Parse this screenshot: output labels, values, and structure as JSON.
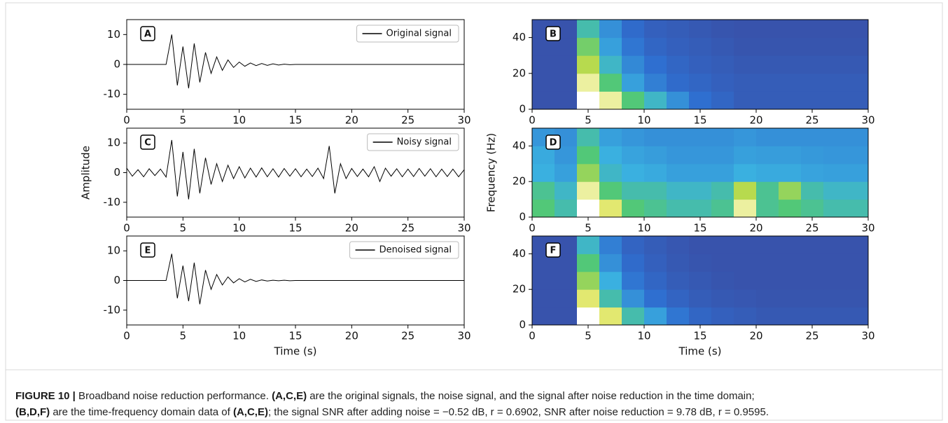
{
  "chart_data": [
    {
      "type": "line",
      "panel": "A",
      "legend": "Original signal",
      "color": "#000000",
      "xlim": [
        0,
        30
      ],
      "xticks": [
        0,
        5,
        10,
        15,
        20,
        25,
        30
      ],
      "ylim": [
        -15,
        15
      ],
      "yticks": [
        -10,
        0,
        10
      ],
      "x": [
        0,
        0.5,
        1,
        1.5,
        2,
        2.5,
        3,
        3.5,
        4,
        4.5,
        5,
        5.5,
        6,
        6.5,
        7,
        7.5,
        8,
        8.5,
        9,
        9.5,
        10,
        10.5,
        11,
        11.5,
        12,
        12.5,
        13,
        13.5,
        14,
        14.5,
        15,
        15.5,
        16,
        16.5,
        17,
        17.5,
        18,
        18.5,
        19,
        19.5,
        20,
        20.5,
        21,
        21.5,
        22,
        22.5,
        23,
        23.5,
        24,
        24.5,
        25,
        25.5,
        26,
        26.5,
        27,
        27.5,
        28,
        28.5,
        29,
        29.5,
        30
      ],
      "values": [
        0,
        0,
        0,
        0,
        0,
        0,
        0,
        0,
        10,
        -7,
        6,
        -8,
        7,
        -6,
        4,
        -3,
        2.5,
        -2,
        1.5,
        -1,
        0.8,
        -0.6,
        0.5,
        -0.4,
        0.3,
        -0.3,
        0.2,
        -0.2,
        0.1,
        -0.1,
        0,
        0,
        0,
        0,
        0,
        0,
        0,
        0,
        0,
        0,
        0,
        0,
        0,
        0,
        0,
        0,
        0,
        0,
        0,
        0,
        0,
        0,
        0,
        0,
        0,
        0,
        0,
        0,
        0,
        0,
        0
      ]
    },
    {
      "type": "heatmap",
      "panel": "B",
      "xlim": [
        0,
        30
      ],
      "xticks": [
        0,
        5,
        10,
        15,
        20,
        25,
        30
      ],
      "ylim": [
        0,
        50
      ],
      "yticks": [
        0,
        20,
        40
      ],
      "colorscale": [
        "#3b4aa0",
        "#2f6fd0",
        "#3ab0e0",
        "#52c878",
        "#d8e040",
        "#ffffff"
      ],
      "x": [
        1,
        3,
        5,
        7,
        9,
        11,
        13,
        15,
        17,
        19,
        21,
        23,
        25,
        27,
        29
      ],
      "y": [
        5,
        15,
        25,
        35,
        45
      ],
      "z": [
        [
          0.05,
          0.05,
          1,
          0.9,
          0.6,
          0.45,
          0.3,
          0.2,
          0.15,
          0.1,
          0.1,
          0.1,
          0.1,
          0.1,
          0.1
        ],
        [
          0.05,
          0.05,
          0.9,
          0.6,
          0.35,
          0.25,
          0.18,
          0.15,
          0.12,
          0.1,
          0.1,
          0.1,
          0.1,
          0.1,
          0.1
        ],
        [
          0.05,
          0.05,
          0.75,
          0.45,
          0.28,
          0.2,
          0.15,
          0.12,
          0.1,
          0.08,
          0.08,
          0.08,
          0.08,
          0.08,
          0.08
        ],
        [
          0.05,
          0.05,
          0.65,
          0.35,
          0.22,
          0.15,
          0.12,
          0.1,
          0.08,
          0.06,
          0.06,
          0.06,
          0.06,
          0.06,
          0.06
        ],
        [
          0.05,
          0.05,
          0.5,
          0.3,
          0.18,
          0.12,
          0.1,
          0.08,
          0.06,
          0.05,
          0.05,
          0.05,
          0.05,
          0.05,
          0.05
        ]
      ]
    },
    {
      "type": "line",
      "panel": "C",
      "legend": "Noisy signal",
      "ylabel": "Amplitude",
      "color": "#000000",
      "xlim": [
        0,
        30
      ],
      "xticks": [
        0,
        5,
        10,
        15,
        20,
        25,
        30
      ],
      "ylim": [
        -15,
        15
      ],
      "yticks": [
        -10,
        0,
        10
      ],
      "x": [
        0,
        0.5,
        1,
        1.5,
        2,
        2.5,
        3,
        3.5,
        4,
        4.5,
        5,
        5.5,
        6,
        6.5,
        7,
        7.5,
        8,
        8.5,
        9,
        9.5,
        10,
        10.5,
        11,
        11.5,
        12,
        12.5,
        13,
        13.5,
        14,
        14.5,
        15,
        15.5,
        16,
        16.5,
        17,
        17.5,
        18,
        18.5,
        19,
        19.5,
        20,
        20.5,
        21,
        21.5,
        22,
        22.5,
        23,
        23.5,
        24,
        24.5,
        25,
        25.5,
        26,
        26.5,
        27,
        27.5,
        28,
        28.5,
        29,
        29.5,
        30
      ],
      "values": [
        1.5,
        -1.2,
        1,
        -1.4,
        1.3,
        -1,
        1.2,
        -1.5,
        11,
        -8,
        7,
        -9,
        8,
        -7,
        5,
        -4,
        3,
        -3,
        2.5,
        -2,
        2,
        -1.8,
        1.5,
        -1.5,
        1.6,
        -1.4,
        1.3,
        -1.5,
        1.4,
        -1.2,
        1.3,
        -1.4,
        1.2,
        -1.3,
        1.5,
        -2,
        9,
        -7,
        3,
        -2,
        1.4,
        -1.3,
        1.2,
        -1.4,
        2,
        -3,
        1.5,
        -1.2,
        1.3,
        -1.4,
        1.2,
        -1.3,
        1.4,
        -1.2,
        1.3,
        -1.4,
        1.2,
        -1.3,
        1.2,
        -1.4,
        1
      ]
    },
    {
      "type": "heatmap",
      "panel": "D",
      "ylabel": "Frequency (Hz)",
      "xlim": [
        0,
        30
      ],
      "xticks": [
        0,
        5,
        10,
        15,
        20,
        25,
        30
      ],
      "ylim": [
        0,
        50
      ],
      "yticks": [
        0,
        20,
        40
      ],
      "colorscale": [
        "#3b4aa0",
        "#2f6fd0",
        "#3ab0e0",
        "#52c878",
        "#d8e040",
        "#ffffff"
      ],
      "x": [
        1,
        3,
        5,
        7,
        9,
        11,
        13,
        15,
        17,
        19,
        21,
        23,
        25,
        27,
        29
      ],
      "y": [
        5,
        15,
        25,
        35,
        45
      ],
      "z": [
        [
          0.6,
          0.5,
          1,
          0.85,
          0.6,
          0.55,
          0.5,
          0.5,
          0.55,
          0.9,
          0.55,
          0.6,
          0.55,
          0.5,
          0.5
        ],
        [
          0.55,
          0.45,
          0.9,
          0.6,
          0.5,
          0.5,
          0.45,
          0.45,
          0.5,
          0.75,
          0.55,
          0.7,
          0.5,
          0.45,
          0.45
        ],
        [
          0.4,
          0.35,
          0.7,
          0.45,
          0.4,
          0.38,
          0.35,
          0.35,
          0.35,
          0.4,
          0.38,
          0.38,
          0.36,
          0.35,
          0.35
        ],
        [
          0.38,
          0.32,
          0.6,
          0.4,
          0.36,
          0.34,
          0.32,
          0.32,
          0.32,
          0.35,
          0.34,
          0.34,
          0.33,
          0.32,
          0.32
        ],
        [
          0.32,
          0.3,
          0.5,
          0.35,
          0.32,
          0.3,
          0.3,
          0.3,
          0.3,
          0.32,
          0.3,
          0.3,
          0.3,
          0.3,
          0.3
        ]
      ]
    },
    {
      "type": "line",
      "panel": "E",
      "legend": "Denoised signal",
      "xlabel": "Time (s)",
      "color": "#000000",
      "xlim": [
        0,
        30
      ],
      "xticks": [
        0,
        5,
        10,
        15,
        20,
        25,
        30
      ],
      "ylim": [
        -15,
        15
      ],
      "yticks": [
        -10,
        0,
        10
      ],
      "x": [
        0,
        0.5,
        1,
        1.5,
        2,
        2.5,
        3,
        3.5,
        4,
        4.5,
        5,
        5.5,
        6,
        6.5,
        7,
        7.5,
        8,
        8.5,
        9,
        9.5,
        10,
        10.5,
        11,
        11.5,
        12,
        12.5,
        13,
        13.5,
        14,
        14.5,
        15,
        15.5,
        16,
        16.5,
        17,
        17.5,
        18,
        18.5,
        19,
        19.5,
        20,
        20.5,
        21,
        21.5,
        22,
        22.5,
        23,
        23.5,
        24,
        24.5,
        25,
        25.5,
        26,
        26.5,
        27,
        27.5,
        28,
        28.5,
        29,
        29.5,
        30
      ],
      "values": [
        0,
        0,
        0,
        0,
        0,
        0,
        0,
        0,
        9,
        -6,
        5,
        -7,
        6,
        -8,
        3.5,
        -3,
        2,
        -1.5,
        1.2,
        -0.8,
        0.6,
        -0.5,
        0.4,
        -0.3,
        0.2,
        -0.2,
        0.1,
        -0.1,
        0.1,
        -0.1,
        0,
        0,
        0,
        0,
        0,
        0,
        0,
        0,
        0,
        0,
        0,
        0,
        0,
        0,
        0,
        0,
        0,
        0,
        0,
        0,
        0,
        0,
        0,
        0,
        0,
        0,
        0,
        0,
        0,
        0,
        0
      ]
    },
    {
      "type": "heatmap",
      "panel": "F",
      "xlabel": "Time (s)",
      "xlim": [
        0,
        30
      ],
      "xticks": [
        0,
        5,
        10,
        15,
        20,
        25,
        30
      ],
      "ylim": [
        0,
        50
      ],
      "yticks": [
        0,
        20,
        40
      ],
      "colorscale": [
        "#3b4aa0",
        "#2f6fd0",
        "#3ab0e0",
        "#52c878",
        "#d8e040",
        "#ffffff"
      ],
      "x": [
        1,
        3,
        5,
        7,
        9,
        11,
        13,
        15,
        17,
        19,
        21,
        23,
        25,
        27,
        29
      ],
      "y": [
        5,
        15,
        25,
        35,
        45
      ],
      "z": [
        [
          0.05,
          0.05,
          1,
          0.85,
          0.5,
          0.35,
          0.22,
          0.15,
          0.12,
          0.1,
          0.08,
          0.08,
          0.08,
          0.08,
          0.08
        ],
        [
          0.05,
          0.05,
          0.85,
          0.5,
          0.3,
          0.2,
          0.14,
          0.1,
          0.08,
          0.07,
          0.06,
          0.06,
          0.06,
          0.06,
          0.06
        ],
        [
          0.05,
          0.05,
          0.7,
          0.4,
          0.22,
          0.15,
          0.1,
          0.08,
          0.06,
          0.05,
          0.05,
          0.05,
          0.05,
          0.05,
          0.05
        ],
        [
          0.05,
          0.05,
          0.6,
          0.3,
          0.18,
          0.12,
          0.08,
          0.06,
          0.05,
          0.05,
          0.05,
          0.05,
          0.05,
          0.05,
          0.05
        ],
        [
          0.05,
          0.05,
          0.45,
          0.25,
          0.14,
          0.1,
          0.07,
          0.05,
          0.05,
          0.05,
          0.05,
          0.05,
          0.05,
          0.05,
          0.05
        ]
      ]
    }
  ],
  "caption": {
    "lines": [
      [
        {
          "text": "FIGURE 10 |",
          "bold": true
        },
        {
          "text": " Broadband noise reduction performance. ",
          "bold": false
        },
        {
          "text": "(A,C,E)",
          "bold": true
        },
        {
          "text": " are the original signals, the noise signal, and the signal after noise reduction in the time domain;",
          "bold": false
        }
      ],
      [
        {
          "text": "(B,D,F)",
          "bold": true
        },
        {
          "text": " are the time-frequency domain data of ",
          "bold": false
        },
        {
          "text": "(A,C,E)",
          "bold": true
        },
        {
          "text": "; the signal SNR after adding noise = −0.52 dB, r = 0.6902, SNR after noise reduction = 9.78 dB, r = 0.9595.",
          "bold": false
        }
      ]
    ]
  }
}
